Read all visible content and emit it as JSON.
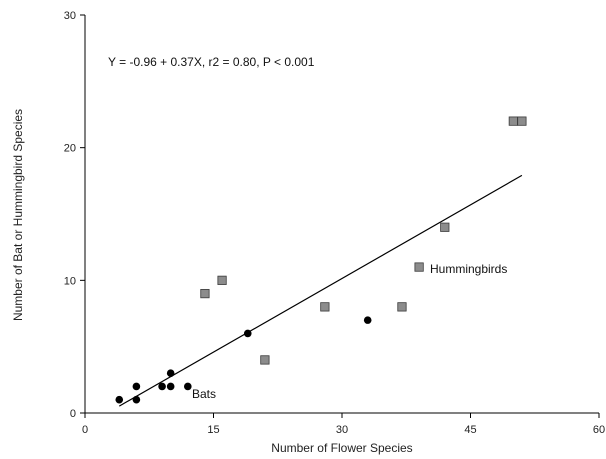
{
  "chart_data": {
    "type": "scatter",
    "title": "",
    "xlabel": "Number of Flower Species",
    "ylabel": "Number of Bat or Hummingbird Species",
    "xlim": [
      0,
      60
    ],
    "ylim": [
      0,
      30
    ],
    "xticks": [
      0,
      15,
      30,
      45,
      60
    ],
    "yticks": [
      0,
      10,
      20,
      30
    ],
    "grid": false,
    "series": [
      {
        "name": "Bats",
        "marker": "circle",
        "color": "#000000",
        "points": [
          [
            4,
            1
          ],
          [
            6,
            1
          ],
          [
            6,
            2
          ],
          [
            9,
            2
          ],
          [
            10,
            2
          ],
          [
            10,
            3
          ],
          [
            12,
            2
          ],
          [
            19,
            6
          ],
          [
            33,
            7
          ]
        ]
      },
      {
        "name": "Hummingbirds",
        "marker": "square",
        "color": "#8c8c8c",
        "points": [
          [
            14,
            9
          ],
          [
            16,
            10
          ],
          [
            21,
            4
          ],
          [
            28,
            8
          ],
          [
            37,
            8
          ],
          [
            39,
            11
          ],
          [
            42,
            14
          ],
          [
            50,
            22
          ],
          [
            51,
            22
          ]
        ]
      }
    ],
    "regression": {
      "equation": "Y = -0.96 + 0.37X, r2 = 0.80, P < 0.001",
      "intercept": -0.96,
      "slope": 0.37,
      "x_range": [
        4,
        51
      ]
    }
  }
}
